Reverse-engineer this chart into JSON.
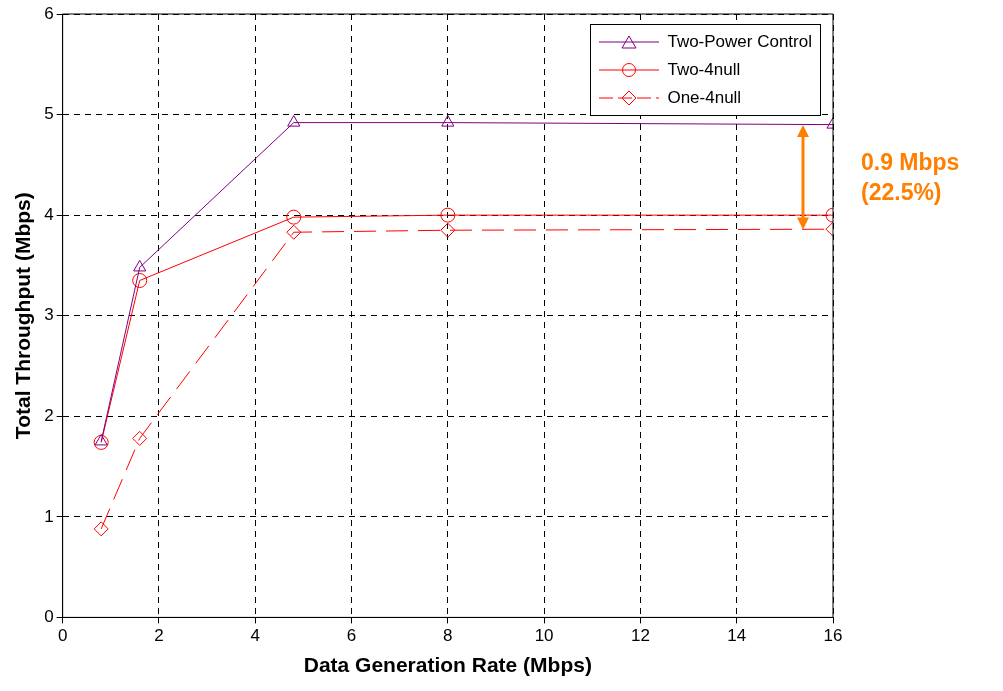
{
  "chart_data": {
    "type": "line",
    "xlabel": "Data Generation Rate (Mbps)",
    "ylabel": "Total Throughput (Mbps)",
    "x": [
      0.8,
      1.6,
      4.8,
      8,
      16
    ],
    "series": [
      {
        "name": "Two-Power Control",
        "color": "#800080",
        "values": [
          1.75,
          3.48,
          4.92,
          4.92,
          4.9
        ],
        "marker": "triangle",
        "line_style": "solid"
      },
      {
        "name": "Two-4null",
        "color": "#ff0000",
        "values": [
          1.74,
          3.35,
          3.98,
          4.0,
          4.0
        ],
        "marker": "circle",
        "line_style": "solid"
      },
      {
        "name": "One-4null",
        "color": "#ff0000",
        "values": [
          0.88,
          1.78,
          3.83,
          3.85,
          3.86
        ],
        "marker": "diamond",
        "line_style": "dashed"
      }
    ],
    "xlim": [
      0,
      16
    ],
    "xticks": [
      0,
      2,
      4,
      6,
      8,
      10,
      12,
      14,
      16
    ],
    "ylim": [
      0,
      6
    ],
    "yticks": [
      0,
      1,
      2,
      3,
      4,
      5,
      6
    ],
    "grid": true,
    "legend": "top right",
    "annotations": [
      "0.9 Mbps (22.5%)"
    ]
  }
}
